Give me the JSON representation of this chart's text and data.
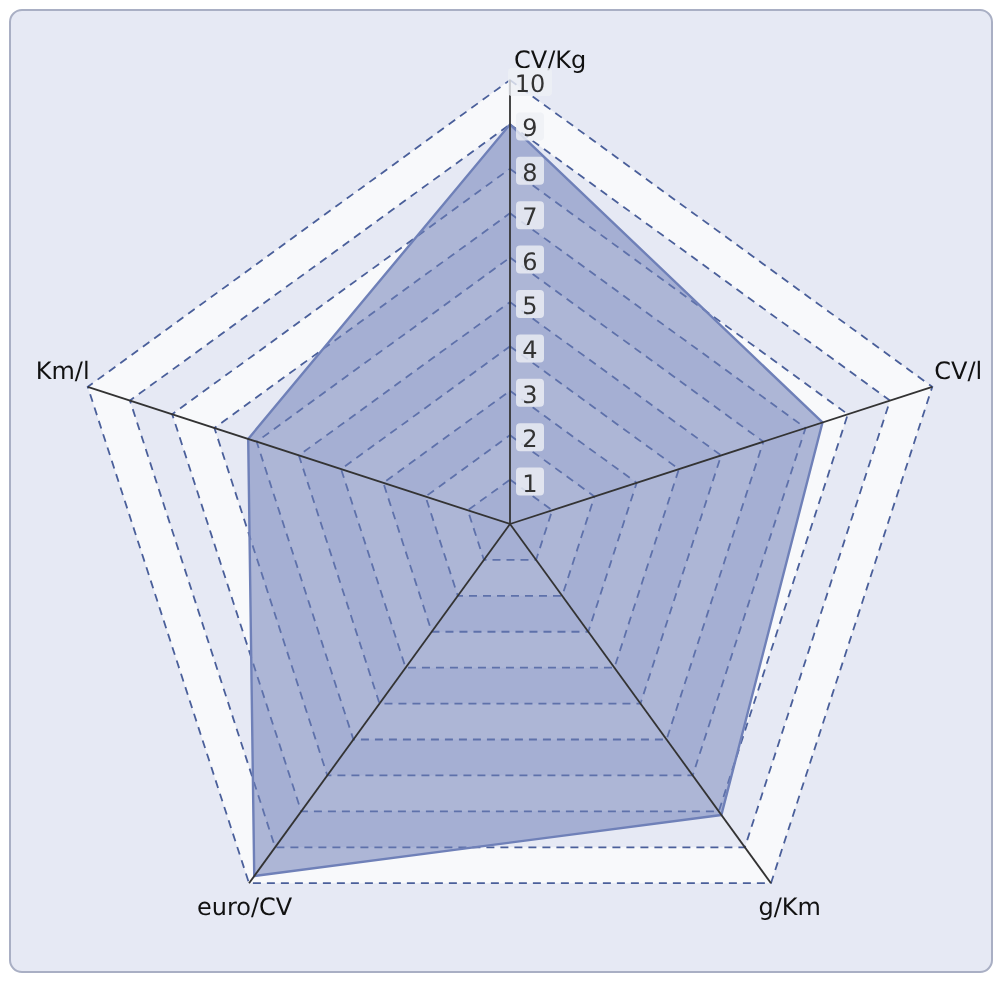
{
  "chart_data": {
    "type": "radar",
    "categories": [
      "CV/Kg",
      "CV/l",
      "g/Km",
      "euro/CV",
      "Km/l"
    ],
    "series": [
      {
        "color": "#6f80b8",
        "values": [
          9,
          7.4,
          8.1,
          9.8,
          6.2
        ]
      }
    ],
    "ylim": [
      0,
      10
    ],
    "yticks": [
      1,
      2,
      3,
      4,
      5,
      6,
      7,
      8,
      9,
      10
    ],
    "grid": true
  }
}
